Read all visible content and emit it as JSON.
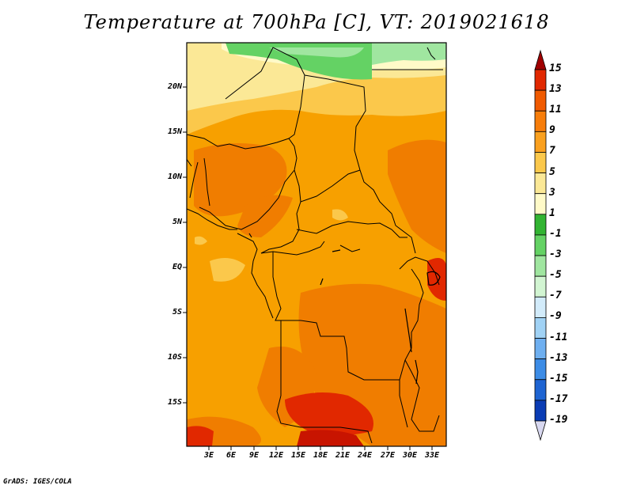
{
  "title": "Temperature at 700hPa [C], VT: 2019021618",
  "credit": "GrADS: IGES/COLA",
  "lat_labels": [
    "20N",
    "15N",
    "10N",
    "5N",
    "EQ",
    "5S",
    "10S",
    "15S"
  ],
  "lon_labels": [
    "3E",
    "6E",
    "9E",
    "12E",
    "15E",
    "18E",
    "21E",
    "24E",
    "27E",
    "30E",
    "33E"
  ],
  "colorbar": {
    "levels": [
      "15",
      "13",
      "11",
      "9",
      "7",
      "5",
      "3",
      "1",
      "-1",
      "-3",
      "-5",
      "-7",
      "-9",
      "-11",
      "-13",
      "-15",
      "-17",
      "-19"
    ],
    "colors": [
      "#a00000",
      "#e12800",
      "#f05a00",
      "#f77d0a",
      "#faa01e",
      "#fbc84b",
      "#fbe896",
      "#fffac8",
      "#32b432",
      "#64d264",
      "#a0e6a0",
      "#d2f5d2",
      "#d2ebfa",
      "#a0d2f5",
      "#6eaff0",
      "#3c8ce6",
      "#1e64d2",
      "#0a3cb4",
      "#000f78"
    ]
  }
}
